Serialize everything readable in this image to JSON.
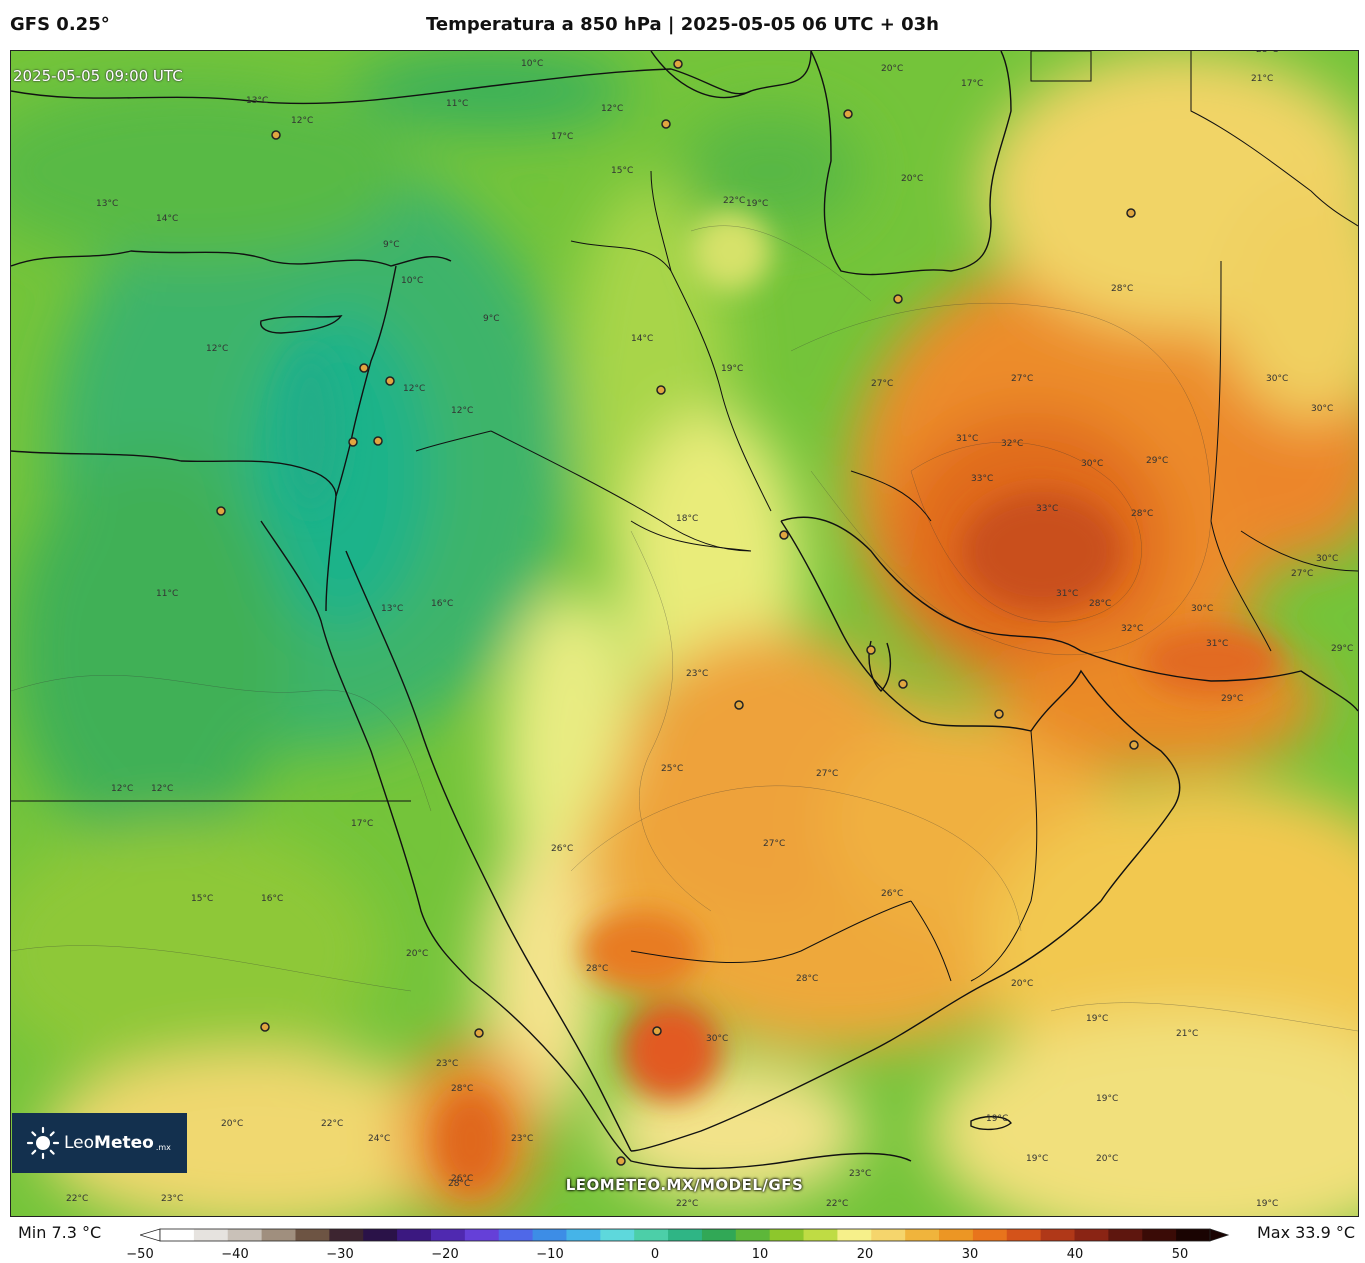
{
  "header": {
    "model": "GFS 0.25°",
    "title": "Temperatura a 850 hPa | 2025-05-05 06 UTC + 03h"
  },
  "map": {
    "valid_time": "2025-05-05 09:00 UTC",
    "watermark": "LEOMETEO.MX/MODEL/GFS",
    "logo": {
      "name_regular": "Leo",
      "name_bold": "Meteo",
      "suffix": ".mx"
    },
    "contour_labels": [
      "13°C",
      "12°C",
      "11°C",
      "10°C",
      "12°C",
      "17°C",
      "15°C",
      "20°C",
      "17°C",
      "20°C",
      "21°C",
      "14°C",
      "22°C",
      "19°C",
      "9°C",
      "10°C",
      "9°C",
      "12°C",
      "14°C",
      "19°C",
      "12°C",
      "12°C",
      "12°C",
      "13°C",
      "28°C",
      "27°C",
      "31°C",
      "32°C",
      "33°C",
      "33°C",
      "30°C",
      "30°C",
      "30°C",
      "28°C",
      "29°C",
      "27°C",
      "31°C",
      "28°C",
      "30°C",
      "32°C",
      "28°C",
      "31°C",
      "29°C",
      "29°C",
      "30°C",
      "27°C",
      "27°C",
      "26°C",
      "23°C",
      "25°C",
      "18°C",
      "16°C",
      "13°C",
      "11°C",
      "12°C",
      "17°C",
      "15°C",
      "16°C",
      "20°C",
      "26°C",
      "28°C",
      "27°C",
      "28°C",
      "30°C",
      "20°C",
      "19°C",
      "21°C",
      "19°C",
      "19°C",
      "19°C",
      "20°C",
      "19°C",
      "23°C",
      "22°C",
      "22°C",
      "20°C",
      "22°C",
      "23°C",
      "23°C",
      "24°C",
      "28°C",
      "28°C",
      "26°C",
      "23°C",
      "22°C",
      "23°C"
    ]
  },
  "colorbar": {
    "min_label": "Min 7.3 °C",
    "max_label": "Max 33.9 °C",
    "ticks": [
      "−50",
      "−40",
      "−30",
      "−20",
      "−10",
      "0",
      "10",
      "20",
      "30",
      "40",
      "50"
    ],
    "range": [
      -50,
      50
    ],
    "colors": [
      "#ffffff",
      "#e6e3df",
      "#c9c1b8",
      "#a08f7e",
      "#6d5443",
      "#3d2530",
      "#2a1248",
      "#3b1880",
      "#4f29b0",
      "#6540d8",
      "#4f68e8",
      "#3d8de6",
      "#45b4e8",
      "#5ed8dc",
      "#4ccfa8",
      "#2fb585",
      "#31a856",
      "#5db73a",
      "#8dc72c",
      "#bfdc44",
      "#f6f08a",
      "#f5d56c",
      "#f0b43c",
      "#ec9624",
      "#e8741c",
      "#d4531a",
      "#b03818",
      "#8a2414",
      "#5e160e",
      "#3a0b06",
      "#1a0402"
    ]
  },
  "footer": {}
}
